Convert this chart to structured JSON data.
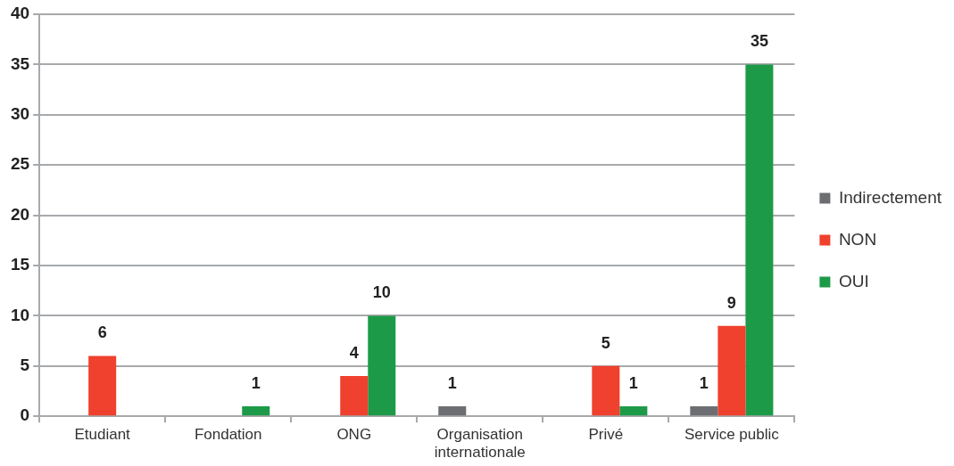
{
  "chart_data": {
    "type": "bar",
    "categories": [
      "Etudiant",
      "Fondation",
      "ONG",
      "Organisation internationale",
      "Privé",
      "Service public"
    ],
    "series": [
      {
        "name": "Indirectement",
        "color": "#6d6e71",
        "values": [
          null,
          null,
          null,
          1,
          null,
          1
        ]
      },
      {
        "name": "NON",
        "color": "#ef412d",
        "values": [
          6,
          null,
          4,
          null,
          5,
          9
        ]
      },
      {
        "name": "OUI",
        "color": "#1d9a48",
        "values": [
          null,
          1,
          10,
          null,
          1,
          35
        ]
      }
    ],
    "ylim": [
      0,
      40
    ],
    "yticks": [
      0,
      5,
      10,
      15,
      20,
      25,
      30,
      35,
      40
    ],
    "grid": "y",
    "legend": "right",
    "data_labels": true
  }
}
